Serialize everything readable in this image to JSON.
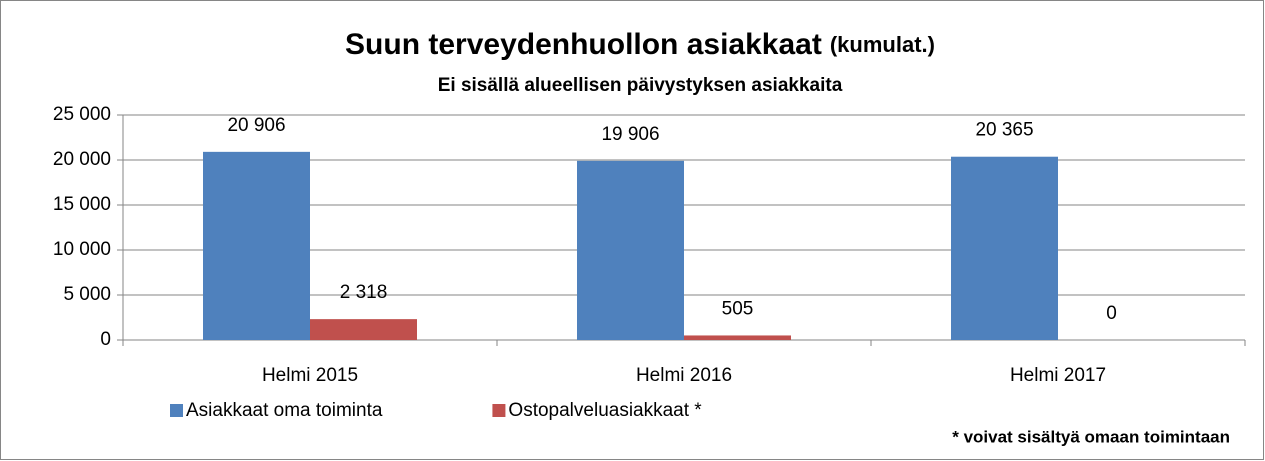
{
  "chart_data": {
    "type": "bar",
    "title": "Suun terveydenhuollon asiakkaat",
    "title_suffix": "(kumulat.)",
    "subtitle": "Ei sisällä alueellisen päivystyksen asiakkaita",
    "note": "* voivat  sisältyä omaan toimintaan",
    "categories": [
      "Helmi 2015",
      "Helmi 2016",
      "Helmi 2017"
    ],
    "series": [
      {
        "name": "Asiakkaat oma toiminta",
        "color": "#4f81bd",
        "values": [
          20906,
          19906,
          20365
        ],
        "value_labels": [
          "20 906",
          "19 906",
          "20 365"
        ]
      },
      {
        "name": "Ostopalveluasiakkaat *",
        "color": "#c0504d",
        "values": [
          2318,
          505,
          0
        ],
        "value_labels": [
          "2 318",
          "505",
          "0"
        ]
      }
    ],
    "ylim": [
      0,
      25000
    ],
    "yticks": [
      0,
      {
        "value": 5000,
        "label": "5 000"
      },
      {
        "value": 10000,
        "label": "10 000"
      },
      {
        "value": 15000,
        "label": "15 000"
      },
      {
        "value": 20000,
        "label": "20 000"
      },
      {
        "value": 25000,
        "label": "25 000"
      }
    ],
    "grid": true,
    "legend": "bottom"
  }
}
